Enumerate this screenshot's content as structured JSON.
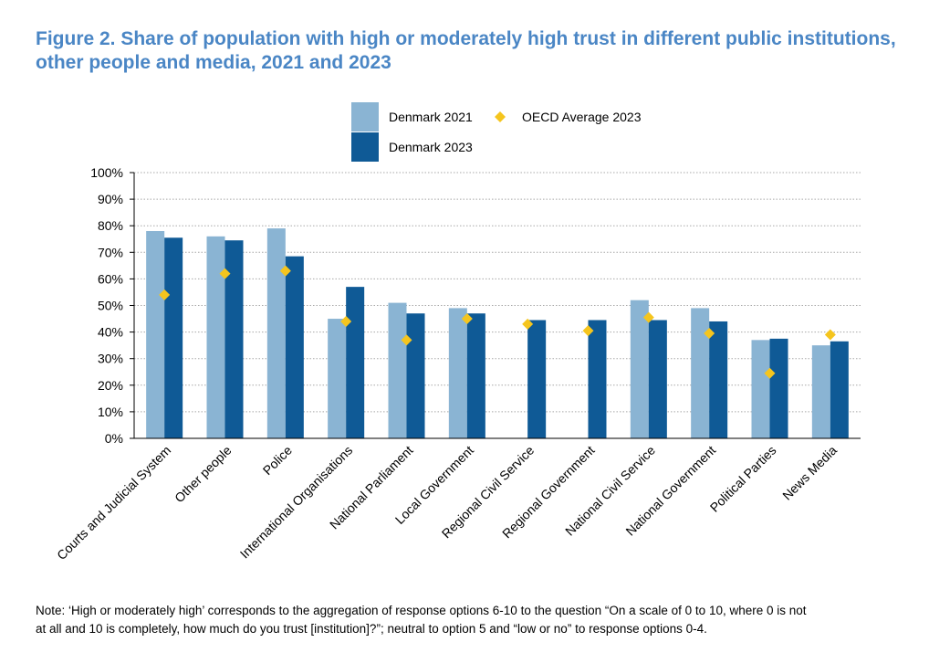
{
  "title_lines": [
    "Figure 2. Share of population with high or moderately high trust in different public institutions,",
    "other people and media, 2021 and 2023"
  ],
  "note_lines": [
    "Note: ‘High or moderately high’ corresponds to the aggregation of response options 6-10 to the question “On a scale of 0 to 10, where 0 is not",
    "at all and 10 is completely, how much do you trust [institution]?”; neutral to option 5 and “low or no” to response options 0-4."
  ],
  "chart_data": {
    "type": "bar",
    "title": "Share of population with high or moderately high trust in different public institutions, other people and media, 2021 and 2023",
    "categories": [
      "Courts and Judicial System",
      "Other people",
      "Police",
      "International Organisations",
      "National Parliament",
      "Local Government",
      "Regional Civil Service",
      "Regional Government",
      "National Civil Service",
      "National Government",
      "Political Parties",
      "News Media"
    ],
    "series": [
      {
        "name": "Denmark 2021",
        "kind": "bar",
        "color": "#8ab4d3",
        "values": [
          78,
          76,
          79,
          45,
          51,
          49,
          null,
          null,
          52,
          49,
          37,
          35
        ]
      },
      {
        "name": "Denmark 2023",
        "kind": "bar",
        "color": "#0f5a96",
        "values": [
          75.5,
          74.5,
          68.5,
          57,
          47,
          47,
          44.5,
          44.5,
          44.5,
          44,
          37.5,
          36.5
        ]
      },
      {
        "name": "OECD Average 2023",
        "kind": "marker",
        "color": "#f5c51e",
        "values": [
          54,
          62,
          63,
          44,
          37,
          45,
          43,
          40.5,
          45.5,
          39.5,
          24.5,
          39
        ]
      }
    ],
    "y_ticks": [
      "0%",
      "10%",
      "20%",
      "30%",
      "40%",
      "50%",
      "60%",
      "70%",
      "80%",
      "90%",
      "100%"
    ],
    "ylim": [
      0,
      100
    ],
    "xlabel": "",
    "ylabel": "",
    "grid": true,
    "legend": "top-center"
  }
}
